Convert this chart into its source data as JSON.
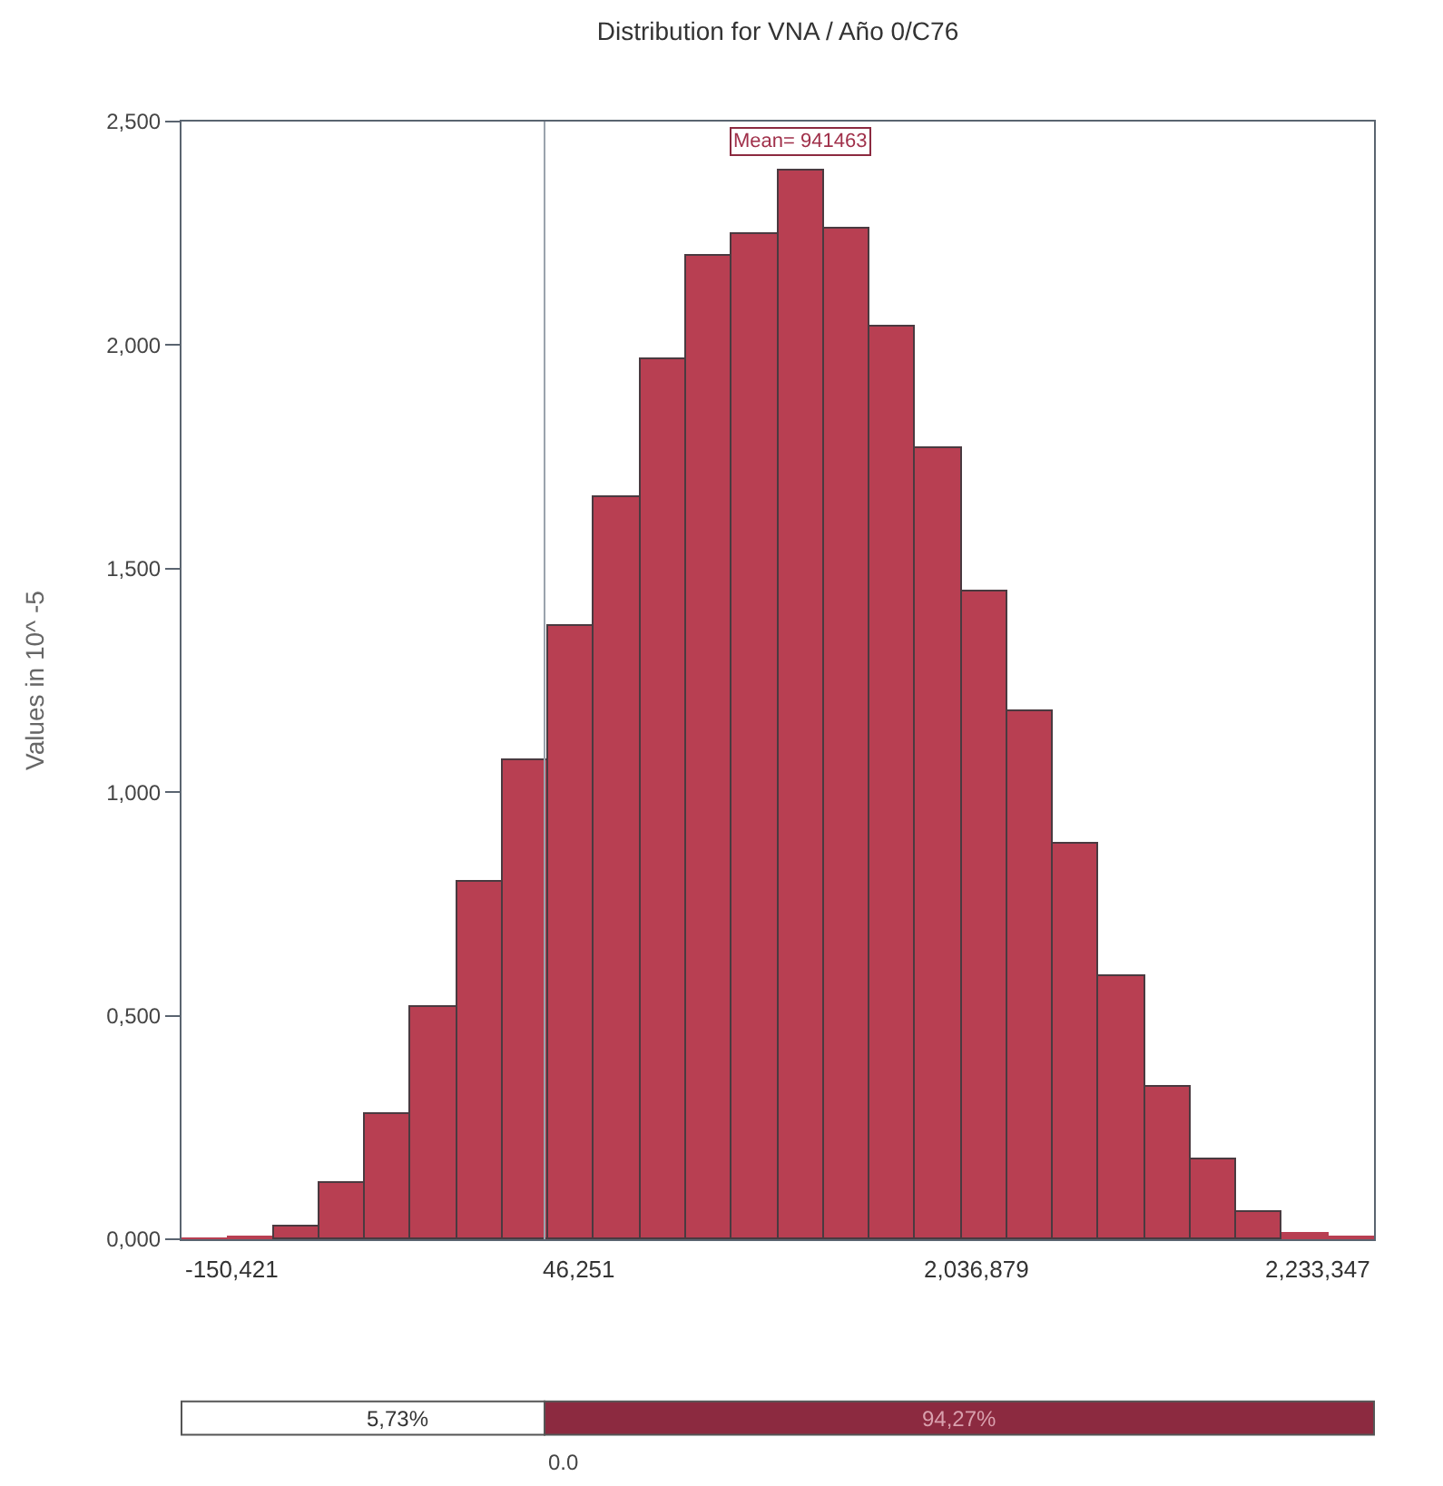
{
  "chart_data": {
    "type": "bar",
    "title": "Distribution for VNA / Año 0/C76",
    "ylabel": "Values in 10^ -5",
    "categories": [
      null,
      null,
      null,
      null,
      null,
      null,
      null,
      null,
      null,
      null,
      null,
      null,
      null,
      null,
      null,
      null,
      null,
      null,
      null,
      null,
      null,
      null,
      null,
      null,
      null,
      null
    ],
    "values": [
      0.002,
      0.007,
      0.03,
      0.125,
      0.28,
      0.52,
      0.8,
      1.07,
      1.37,
      1.66,
      1.97,
      2.2,
      2.25,
      2.39,
      2.26,
      2.04,
      1.77,
      1.45,
      1.18,
      0.885,
      0.59,
      0.34,
      0.18,
      0.06,
      0.015,
      0.005
    ],
    "color": "#b83f52",
    "ylim": [
      0,
      2.5
    ],
    "yticks": [
      {
        "value": 0,
        "label": "0,000"
      },
      {
        "value": 0.5,
        "label": "0,500"
      },
      {
        "value": 1,
        "label": "1,000"
      },
      {
        "value": 1.5,
        "label": "1,500"
      },
      {
        "value": 2,
        "label": "2,000"
      },
      {
        "value": 2.5,
        "label": "2,500"
      }
    ],
    "annotations": [
      "Mean= 941463",
      "-150,421",
      "46,251",
      "2,036,879",
      "2,233,347",
      "5,73%",
      "94,27%",
      "0.0"
    ],
    "tick_labels": "y"
  }
}
